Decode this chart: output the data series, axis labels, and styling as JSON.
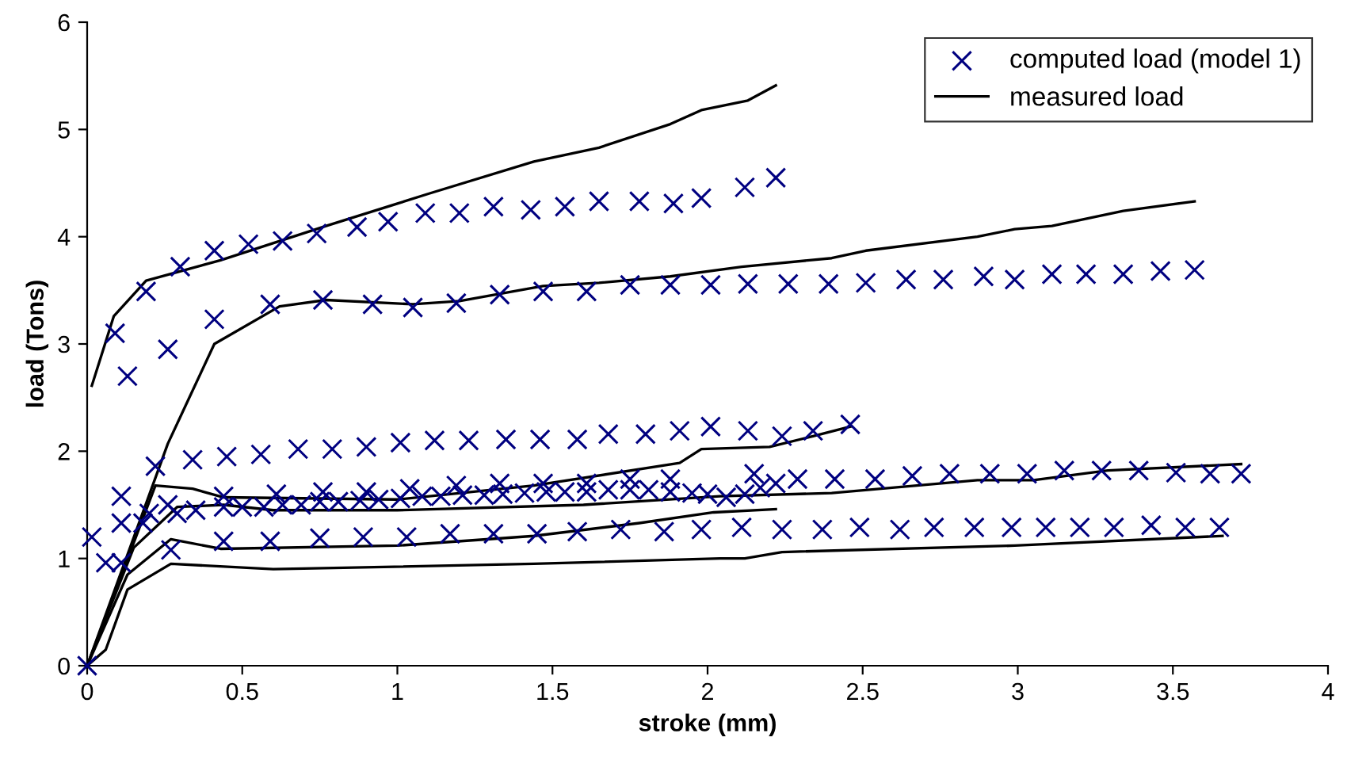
{
  "chart_data": {
    "type": "line",
    "xlabel": "stroke (mm)",
    "ylabel": "load (Tons)",
    "xlim": [
      0,
      4
    ],
    "xticks": [
      0,
      0.5,
      1,
      1.5,
      2,
      2.5,
      3,
      3.5,
      4
    ],
    "ylim": [
      0,
      6
    ],
    "yticks": [
      0,
      1,
      2,
      3,
      4,
      5,
      6
    ],
    "grid": false,
    "legend": "top right",
    "series": [
      {
        "type": "scatter",
        "name": "computed load (model 1)",
        "color": "#000080",
        "marker": "cross",
        "x": [
          0,
          0.09,
          0.19,
          0.3,
          0.41,
          0.52,
          0.63,
          0.74,
          0.87,
          0.97,
          1.09,
          1.2,
          1.31,
          1.43,
          1.54,
          1.65,
          1.78,
          1.89,
          1.98,
          2.12,
          2.22
        ],
        "values": [
          0,
          3.1,
          3.49,
          3.72,
          3.87,
          3.93,
          3.96,
          4.03,
          4.09,
          4.14,
          4.22,
          4.22,
          4.28,
          4.25,
          4.28,
          4.33,
          4.33,
          4.31,
          4.36,
          4.46,
          4.55
        ]
      },
      {
        "type": "scatter",
        "color": "#000080",
        "marker": "cross",
        "x": [
          0.13,
          0.26,
          0.41,
          0.59,
          0.76,
          0.92,
          1.05,
          1.19,
          1.33,
          1.47,
          1.61,
          1.75,
          1.88,
          2.01,
          2.13,
          2.26,
          2.39,
          2.51,
          2.64,
          2.76,
          2.89,
          2.99,
          3.11,
          3.22,
          3.34,
          3.46,
          3.57
        ],
        "values": [
          2.7,
          2.95,
          3.23,
          3.37,
          3.41,
          3.37,
          3.34,
          3.38,
          3.46,
          3.49,
          3.49,
          3.55,
          3.55,
          3.55,
          3.56,
          3.56,
          3.56,
          3.57,
          3.6,
          3.6,
          3.63,
          3.6,
          3.65,
          3.65,
          3.65,
          3.68,
          3.69
        ]
      },
      {
        "type": "scatter",
        "color": "#000080",
        "marker": "cross",
        "x": [
          0.11,
          0.22,
          0.34,
          0.45,
          0.56,
          0.68,
          0.79,
          0.9,
          1.01,
          1.12,
          1.23,
          1.35,
          1.46,
          1.58,
          1.68,
          1.8,
          1.91,
          2.01,
          2.13,
          2.24,
          2.34,
          2.46
        ],
        "values": [
          1.58,
          1.86,
          1.92,
          1.95,
          1.97,
          2.02,
          2.02,
          2.04,
          2.08,
          2.1,
          2.1,
          2.11,
          2.11,
          2.11,
          2.16,
          2.16,
          2.19,
          2.23,
          2.19,
          2.14,
          2.19,
          2.25
        ]
      },
      {
        "type": "scatter",
        "color": "#000080",
        "marker": "cross",
        "x": [
          0.11,
          0.26,
          0.44,
          0.61,
          0.76,
          0.9,
          1.04,
          1.19,
          1.33,
          1.47,
          1.61,
          1.75,
          1.88,
          2.15,
          2.29,
          2.41,
          2.54,
          2.66,
          2.78,
          2.91,
          3.03,
          3.15,
          3.27,
          3.39,
          3.51,
          3.62,
          3.72
        ],
        "values": [
          1.33,
          1.5,
          1.58,
          1.6,
          1.62,
          1.62,
          1.65,
          1.68,
          1.7,
          1.7,
          1.7,
          1.74,
          1.74,
          1.79,
          1.74,
          1.74,
          1.74,
          1.77,
          1.79,
          1.79,
          1.79,
          1.82,
          1.82,
          1.82,
          1.8,
          1.79,
          1.79
        ]
      },
      {
        "type": "scatter",
        "color": "#000080",
        "marker": "cross",
        "x": [
          0.18,
          0.2,
          0.29,
          0.35,
          0.44,
          0.5,
          0.57,
          0.63,
          0.69,
          0.75,
          0.81,
          0.88,
          0.94,
          1.01,
          1.08,
          1.14,
          1.21,
          1.28,
          1.34,
          1.41,
          1.48,
          1.54,
          1.61,
          1.68,
          1.75,
          1.81,
          1.88,
          1.95,
          2.0,
          2.06,
          2.12,
          2.17,
          2.22
        ],
        "values": [
          1.33,
          1.42,
          1.42,
          1.45,
          1.48,
          1.48,
          1.48,
          1.5,
          1.5,
          1.53,
          1.53,
          1.54,
          1.55,
          1.56,
          1.58,
          1.58,
          1.59,
          1.59,
          1.6,
          1.61,
          1.62,
          1.62,
          1.62,
          1.64,
          1.64,
          1.64,
          1.62,
          1.61,
          1.6,
          1.57,
          1.6,
          1.66,
          1.7
        ]
      },
      {
        "type": "scatter",
        "color": "#000080",
        "marker": "cross",
        "x": [
          0.015,
          0.06,
          0.11,
          0.27,
          0.44,
          0.59,
          0.75,
          0.89,
          1.03,
          1.17,
          1.31,
          1.45,
          1.58,
          1.72,
          1.86,
          1.98,
          2.11,
          2.24,
          2.37,
          2.49,
          2.62,
          2.73,
          2.86,
          2.98,
          3.09,
          3.2,
          3.31,
          3.43,
          3.54,
          3.65
        ],
        "values": [
          1.2,
          0.96,
          0.96,
          1.08,
          1.16,
          1.16,
          1.19,
          1.2,
          1.2,
          1.23,
          1.23,
          1.23,
          1.25,
          1.27,
          1.25,
          1.27,
          1.29,
          1.27,
          1.27,
          1.29,
          1.27,
          1.29,
          1.29,
          1.29,
          1.29,
          1.29,
          1.29,
          1.31,
          1.29,
          1.29
        ]
      },
      {
        "name": "measured load",
        "color": "#000000",
        "marker": "none",
        "line_style": "solid",
        "x": [
          0.015,
          0.086,
          0.19,
          0.43,
          0.77,
          1.1,
          1.44,
          1.65,
          1.88,
          1.98,
          2.13,
          2.22
        ],
        "values": [
          2.61,
          3.26,
          3.59,
          3.78,
          4.1,
          4.4,
          4.7,
          4.83,
          5.05,
          5.18,
          5.27,
          5.41
        ]
      },
      {
        "color": "#000000",
        "marker": "none",
        "line_style": "solid",
        "x": [
          0,
          0.26,
          0.41,
          0.62,
          0.77,
          1.05,
          1.2,
          1.47,
          1.65,
          1.88,
          2.11,
          2.4,
          2.51,
          2.87,
          2.99,
          3.11,
          3.34,
          3.57
        ],
        "values": [
          0,
          2.07,
          3.0,
          3.35,
          3.41,
          3.37,
          3.4,
          3.54,
          3.57,
          3.63,
          3.72,
          3.8,
          3.87,
          4.0,
          4.07,
          4.1,
          4.24,
          4.33
        ]
      },
      {
        "color": "#000000",
        "marker": "none",
        "line_style": "solid",
        "x": [
          0,
          0.22,
          0.34,
          0.44,
          1.0,
          1.44,
          1.91,
          1.98,
          2.2,
          2.34,
          2.46
        ],
        "values": [
          0,
          1.68,
          1.65,
          1.57,
          1.55,
          1.68,
          1.89,
          2.02,
          2.04,
          2.14,
          2.23
        ]
      },
      {
        "color": "#000000",
        "marker": "none",
        "line_style": "solid",
        "x": [
          0,
          0.15,
          0.29,
          0.44,
          0.6,
          1.0,
          1.6,
          2.04,
          2.4,
          2.87,
          3.05,
          3.29,
          3.72
        ],
        "values": [
          0,
          1.1,
          1.48,
          1.5,
          1.45,
          1.45,
          1.5,
          1.58,
          1.61,
          1.73,
          1.73,
          1.82,
          1.88
        ]
      },
      {
        "color": "#000000",
        "marker": "none",
        "line_style": "solid",
        "x": [
          0,
          0.13,
          0.27,
          0.43,
          1.0,
          1.44,
          1.78,
          2.02,
          2.22
        ],
        "values": [
          0,
          0.85,
          1.18,
          1.09,
          1.12,
          1.21,
          1.33,
          1.43,
          1.46
        ]
      },
      {
        "color": "#000000",
        "marker": "none",
        "line_style": "solid",
        "x": [
          0,
          0.06,
          0.13,
          0.27,
          0.6,
          1.44,
          2.04,
          2.12,
          2.24,
          2.99,
          3.66
        ],
        "values": [
          0,
          0.15,
          0.71,
          0.95,
          0.9,
          0.95,
          1.0,
          1.0,
          1.06,
          1.12,
          1.21
        ]
      }
    ]
  }
}
